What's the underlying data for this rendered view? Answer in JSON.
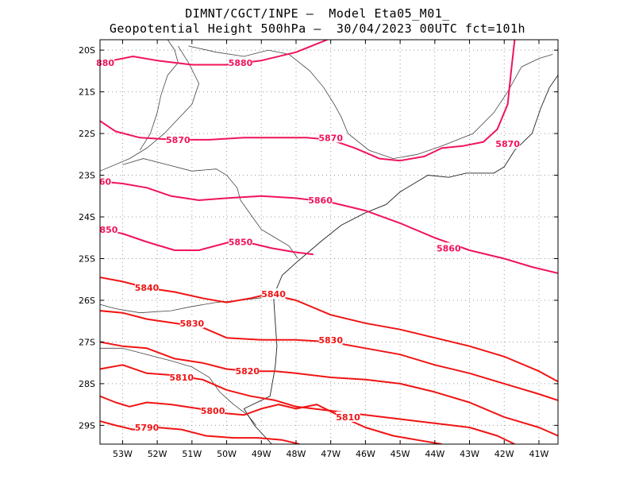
{
  "title_line1": "DIMNT/CGCT/INPE –  Model Eta05_M01_",
  "title_line2": "Geopotential Height 500hPa –  30/04/2023 00UTC fct=101h",
  "map": {
    "lon_range": [
      -53.65,
      -40.45
    ],
    "lat_range": [
      -29.45,
      -19.75
    ],
    "lat_ticks": [
      "20S",
      "21S",
      "22S",
      "23S",
      "24S",
      "25S",
      "26S",
      "27S",
      "28S",
      "29S"
    ],
    "lon_ticks": [
      "53W",
      "52W",
      "51W",
      "50W",
      "49W",
      "48W",
      "47W",
      "46W",
      "45W",
      "44W",
      "43W",
      "42W",
      "41W"
    ],
    "grid": true,
    "contour_color_high": "#f0145a",
    "contour_color_low": "#f01414",
    "contours": [
      {
        "level": 5880,
        "color": "#f0145a",
        "points": [
          [
            -53.65,
            -20.35
          ],
          [
            -53.3,
            -20.25
          ],
          [
            -52.7,
            -20.15
          ],
          [
            -52.0,
            -20.25
          ],
          [
            -51.0,
            -20.35
          ],
          [
            -50.0,
            -20.35
          ],
          [
            -49.0,
            -20.25
          ],
          [
            -48.0,
            -20.05
          ],
          [
            -47.4,
            -19.85
          ],
          [
            -47.1,
            -19.75
          ]
        ],
        "labels": [
          {
            "text": "880",
            "x": -53.5,
            "y": -20.3
          },
          {
            "text": "5880",
            "x": -49.6,
            "y": -20.3
          }
        ]
      },
      {
        "level": 5870,
        "color": "#f0145a",
        "points": [
          [
            -53.65,
            -21.7
          ],
          [
            -53.2,
            -21.95
          ],
          [
            -52.5,
            -22.1
          ],
          [
            -51.5,
            -22.15
          ],
          [
            -50.5,
            -22.15
          ],
          [
            -49.5,
            -22.1
          ],
          [
            -48.5,
            -22.1
          ],
          [
            -47.7,
            -22.1
          ],
          [
            -47.0,
            -22.15
          ],
          [
            -46.3,
            -22.35
          ],
          [
            -45.6,
            -22.6
          ],
          [
            -45.0,
            -22.65
          ],
          [
            -44.3,
            -22.55
          ],
          [
            -43.8,
            -22.35
          ],
          [
            -43.2,
            -22.3
          ],
          [
            -42.6,
            -22.2
          ],
          [
            -42.2,
            -21.9
          ],
          [
            -41.9,
            -21.3
          ],
          [
            -41.8,
            -20.5
          ],
          [
            -41.7,
            -19.75
          ]
        ],
        "labels": [
          {
            "text": "5870",
            "x": -51.4,
            "y": -22.15
          },
          {
            "text": "5870",
            "x": -47.0,
            "y": -22.1
          },
          {
            "text": "5870",
            "x": -41.9,
            "y": -22.25
          }
        ]
      },
      {
        "level": 5860,
        "color": "#f0145a",
        "points": [
          [
            -53.65,
            -23.15
          ],
          [
            -53.0,
            -23.2
          ],
          [
            -52.3,
            -23.3
          ],
          [
            -51.6,
            -23.5
          ],
          [
            -50.8,
            -23.6
          ],
          [
            -50.0,
            -23.55
          ],
          [
            -49.0,
            -23.5
          ],
          [
            -48.0,
            -23.55
          ],
          [
            -47.0,
            -23.65
          ],
          [
            -46.0,
            -23.85
          ],
          [
            -45.0,
            -24.15
          ],
          [
            -44.0,
            -24.5
          ],
          [
            -43.0,
            -24.8
          ],
          [
            -42.0,
            -25.0
          ],
          [
            -41.2,
            -25.2
          ],
          [
            -40.45,
            -25.35
          ]
        ],
        "labels": [
          {
            "text": "60",
            "x": -53.5,
            "y": -23.15
          },
          {
            "text": "5860",
            "x": -47.3,
            "y": -23.6
          },
          {
            "text": "5860",
            "x": -43.6,
            "y": -24.75
          }
        ]
      },
      {
        "level": 5850,
        "color": "#f0145a",
        "points": [
          [
            -53.65,
            -24.3
          ],
          [
            -53.0,
            -24.4
          ],
          [
            -52.3,
            -24.6
          ],
          [
            -51.5,
            -24.8
          ],
          [
            -50.8,
            -24.8
          ],
          [
            -49.9,
            -24.6
          ],
          [
            -49.2,
            -24.65
          ],
          [
            -48.7,
            -24.75
          ],
          [
            -48.0,
            -24.85
          ],
          [
            -47.5,
            -24.9
          ]
        ],
        "labels": [
          {
            "text": "850",
            "x": -53.4,
            "y": -24.3
          },
          {
            "text": "5850",
            "x": -49.6,
            "y": -24.6
          }
        ]
      },
      {
        "level": 5840,
        "color": "#f01414",
        "points": [
          [
            -53.65,
            -25.45
          ],
          [
            -53.0,
            -25.55
          ],
          [
            -52.3,
            -25.7
          ],
          [
            -51.5,
            -25.8
          ],
          [
            -50.7,
            -25.95
          ],
          [
            -50.0,
            -26.05
          ],
          [
            -49.3,
            -25.95
          ],
          [
            -48.8,
            -25.85
          ],
          [
            -48.0,
            -26.0
          ],
          [
            -47.0,
            -26.35
          ],
          [
            -46.0,
            -26.55
          ],
          [
            -45.0,
            -26.7
          ],
          [
            -44.0,
            -26.9
          ],
          [
            -43.0,
            -27.1
          ],
          [
            -42.0,
            -27.35
          ],
          [
            -41.0,
            -27.7
          ],
          [
            -40.45,
            -27.95
          ]
        ],
        "labels": [
          {
            "text": "5840",
            "x": -52.3,
            "y": -25.7
          },
          {
            "text": "5840",
            "x": -48.65,
            "y": -25.85
          }
        ]
      },
      {
        "level": 5830,
        "color": "#f01414",
        "points": [
          [
            -53.65,
            -26.25
          ],
          [
            -53.0,
            -26.3
          ],
          [
            -52.3,
            -26.45
          ],
          [
            -51.5,
            -26.55
          ],
          [
            -50.7,
            -26.65
          ],
          [
            -50.0,
            -26.9
          ],
          [
            -49.0,
            -26.95
          ],
          [
            -48.0,
            -26.95
          ],
          [
            -47.0,
            -27.0
          ],
          [
            -46.0,
            -27.15
          ],
          [
            -45.0,
            -27.3
          ],
          [
            -44.0,
            -27.55
          ],
          [
            -43.0,
            -27.75
          ],
          [
            -42.0,
            -28.0
          ],
          [
            -41.0,
            -28.25
          ],
          [
            -40.45,
            -28.4
          ]
        ],
        "labels": [
          {
            "text": "5830",
            "x": -51.0,
            "y": -26.55
          },
          {
            "text": "5830",
            "x": -47.0,
            "y": -26.95
          }
        ]
      },
      {
        "level": 5820,
        "color": "#f01414",
        "points": [
          [
            -53.65,
            -27.0
          ],
          [
            -53.0,
            -27.1
          ],
          [
            -52.3,
            -27.15
          ],
          [
            -51.5,
            -27.4
          ],
          [
            -50.7,
            -27.5
          ],
          [
            -50.0,
            -27.65
          ],
          [
            -49.3,
            -27.7
          ],
          [
            -48.6,
            -27.7
          ],
          [
            -48.0,
            -27.75
          ],
          [
            -47.0,
            -27.85
          ],
          [
            -46.0,
            -27.9
          ],
          [
            -45.0,
            -28.0
          ],
          [
            -44.0,
            -28.2
          ],
          [
            -43.0,
            -28.45
          ],
          [
            -42.0,
            -28.8
          ],
          [
            -41.0,
            -29.05
          ],
          [
            -40.45,
            -29.25
          ]
        ],
        "labels": [
          {
            "text": "5820",
            "x": -49.4,
            "y": -27.7
          }
        ]
      },
      {
        "level": 5810,
        "color": "#f01414",
        "points": [
          [
            -53.65,
            -27.65
          ],
          [
            -53.0,
            -27.55
          ],
          [
            -52.3,
            -27.75
          ],
          [
            -51.5,
            -27.8
          ],
          [
            -50.7,
            -27.9
          ],
          [
            -50.0,
            -28.15
          ],
          [
            -49.3,
            -28.3
          ],
          [
            -48.6,
            -28.4
          ],
          [
            -48.0,
            -28.55
          ],
          [
            -47.0,
            -28.65
          ],
          [
            -46.0,
            -28.75
          ],
          [
            -45.0,
            -28.85
          ],
          [
            -44.0,
            -28.95
          ],
          [
            -43.0,
            -29.05
          ],
          [
            -42.2,
            -29.25
          ],
          [
            -41.7,
            -29.45
          ]
        ],
        "labels": [
          {
            "text": "5810",
            "x": -51.3,
            "y": -27.85
          },
          {
            "text": "5810",
            "x": -46.5,
            "y": -28.8
          }
        ]
      },
      {
        "level": 5800,
        "color": "#f01414",
        "points": [
          [
            -53.65,
            -28.3
          ],
          [
            -53.2,
            -28.45
          ],
          [
            -52.8,
            -28.55
          ],
          [
            -52.3,
            -28.45
          ],
          [
            -51.6,
            -28.5
          ],
          [
            -50.8,
            -28.6
          ],
          [
            -50.2,
            -28.7
          ],
          [
            -49.5,
            -28.75
          ],
          [
            -49.0,
            -28.6
          ],
          [
            -48.5,
            -28.5
          ],
          [
            -48.0,
            -28.6
          ],
          [
            -47.4,
            -28.5
          ],
          [
            -46.8,
            -28.75
          ],
          [
            -46.0,
            -29.05
          ],
          [
            -45.2,
            -29.25
          ],
          [
            -44.5,
            -29.35
          ],
          [
            -43.8,
            -29.45
          ]
        ],
        "labels": [
          {
            "text": "5800",
            "x": -50.4,
            "y": -28.65
          }
        ]
      },
      {
        "level": 5790,
        "color": "#f01414",
        "points": [
          [
            -53.65,
            -28.9
          ],
          [
            -53.2,
            -29.0
          ],
          [
            -52.7,
            -29.1
          ],
          [
            -52.0,
            -29.05
          ],
          [
            -51.3,
            -29.1
          ],
          [
            -50.6,
            -29.25
          ],
          [
            -49.8,
            -29.3
          ],
          [
            -49.1,
            -29.3
          ],
          [
            -48.4,
            -29.35
          ],
          [
            -47.9,
            -29.45
          ]
        ],
        "labels": [
          {
            "text": "5790",
            "x": -52.3,
            "y": -29.05
          }
        ]
      }
    ],
    "borders": [
      {
        "id": "state-border-sp-ms-pr",
        "points": [
          [
            -51.4,
            -19.9
          ],
          [
            -51.1,
            -20.3
          ],
          [
            -50.8,
            -20.8
          ],
          [
            -51.0,
            -21.3
          ],
          [
            -51.8,
            -22.0
          ],
          [
            -52.3,
            -22.35
          ],
          [
            -52.8,
            -22.6
          ],
          [
            -53.65,
            -22.9
          ]
        ]
      },
      {
        "id": "state-border-sp-pr",
        "points": [
          [
            -53.0,
            -22.75
          ],
          [
            -52.4,
            -22.6
          ],
          [
            -51.7,
            -22.75
          ],
          [
            -51.0,
            -22.9
          ],
          [
            -50.3,
            -22.85
          ],
          [
            -50.0,
            -23.0
          ],
          [
            -49.7,
            -23.3
          ],
          [
            -49.6,
            -23.6
          ],
          [
            -49.3,
            -23.95
          ],
          [
            -49.0,
            -24.3
          ],
          [
            -48.7,
            -24.45
          ],
          [
            -48.2,
            -24.7
          ],
          [
            -47.95,
            -25.0
          ]
        ]
      },
      {
        "id": "state-border-mg-sp",
        "points": [
          [
            -51.1,
            -19.9
          ],
          [
            -50.3,
            -20.05
          ],
          [
            -49.5,
            -20.15
          ],
          [
            -48.8,
            -20.0
          ],
          [
            -48.2,
            -20.1
          ],
          [
            -47.6,
            -20.5
          ],
          [
            -47.2,
            -20.9
          ],
          [
            -46.9,
            -21.3
          ],
          [
            -46.7,
            -21.6
          ],
          [
            -46.5,
            -22.0
          ],
          [
            -45.9,
            -22.4
          ],
          [
            -45.2,
            -22.6
          ],
          [
            -44.5,
            -22.5
          ]
        ]
      },
      {
        "id": "state-border-mg-rj-es",
        "points": [
          [
            -44.5,
            -22.5
          ],
          [
            -43.8,
            -22.3
          ],
          [
            -42.9,
            -22.0
          ],
          [
            -42.3,
            -21.5
          ],
          [
            -41.9,
            -21.0
          ],
          [
            -41.5,
            -20.4
          ],
          [
            -41.0,
            -20.2
          ],
          [
            -40.6,
            -20.1
          ]
        ]
      },
      {
        "id": "state-border-pr-sc",
        "points": [
          [
            -53.65,
            -26.1
          ],
          [
            -53.2,
            -26.2
          ],
          [
            -52.5,
            -26.3
          ],
          [
            -51.6,
            -26.25
          ],
          [
            -51.0,
            -26.15
          ],
          [
            -50.3,
            -26.05
          ],
          [
            -49.6,
            -26.0
          ],
          [
            -49.1,
            -25.95
          ],
          [
            -48.65,
            -25.9
          ]
        ]
      },
      {
        "id": "state-border-sc-rs",
        "points": [
          [
            -53.65,
            -27.15
          ],
          [
            -53.0,
            -27.15
          ],
          [
            -52.3,
            -27.3
          ],
          [
            -51.6,
            -27.45
          ],
          [
            -51.0,
            -27.6
          ],
          [
            -50.5,
            -27.85
          ],
          [
            -50.2,
            -28.2
          ],
          [
            -49.8,
            -28.5
          ],
          [
            -49.4,
            -28.75
          ],
          [
            -49.15,
            -29.0
          ]
        ]
      },
      {
        "id": "state-border-north",
        "points": [
          [
            -51.7,
            -19.75
          ],
          [
            -51.5,
            -20.0
          ],
          [
            -51.4,
            -20.3
          ],
          [
            -51.7,
            -20.6
          ],
          [
            -51.9,
            -21.1
          ],
          [
            -52.0,
            -21.5
          ],
          [
            -52.2,
            -22.0
          ],
          [
            -52.5,
            -22.4
          ]
        ]
      }
    ],
    "coastline": [
      [
        -48.7,
        -29.45
      ],
      [
        -49.2,
        -29.0
      ],
      [
        -49.5,
        -28.6
      ],
      [
        -48.75,
        -28.3
      ],
      [
        -48.6,
        -27.6
      ],
      [
        -48.55,
        -27.1
      ],
      [
        -48.6,
        -26.5
      ],
      [
        -48.65,
        -25.9
      ],
      [
        -48.4,
        -25.4
      ],
      [
        -48.0,
        -25.1
      ],
      [
        -47.3,
        -24.6
      ],
      [
        -46.7,
        -24.2
      ],
      [
        -46.0,
        -23.9
      ],
      [
        -45.4,
        -23.7
      ],
      [
        -45.0,
        -23.4
      ],
      [
        -44.6,
        -23.2
      ],
      [
        -44.2,
        -23.0
      ],
      [
        -43.6,
        -23.05
      ],
      [
        -43.1,
        -22.95
      ],
      [
        -42.3,
        -22.95
      ],
      [
        -42.0,
        -22.8
      ],
      [
        -41.7,
        -22.4
      ],
      [
        -41.2,
        -22.0
      ],
      [
        -40.95,
        -21.4
      ],
      [
        -40.7,
        -20.9
      ],
      [
        -40.45,
        -20.6
      ]
    ]
  }
}
